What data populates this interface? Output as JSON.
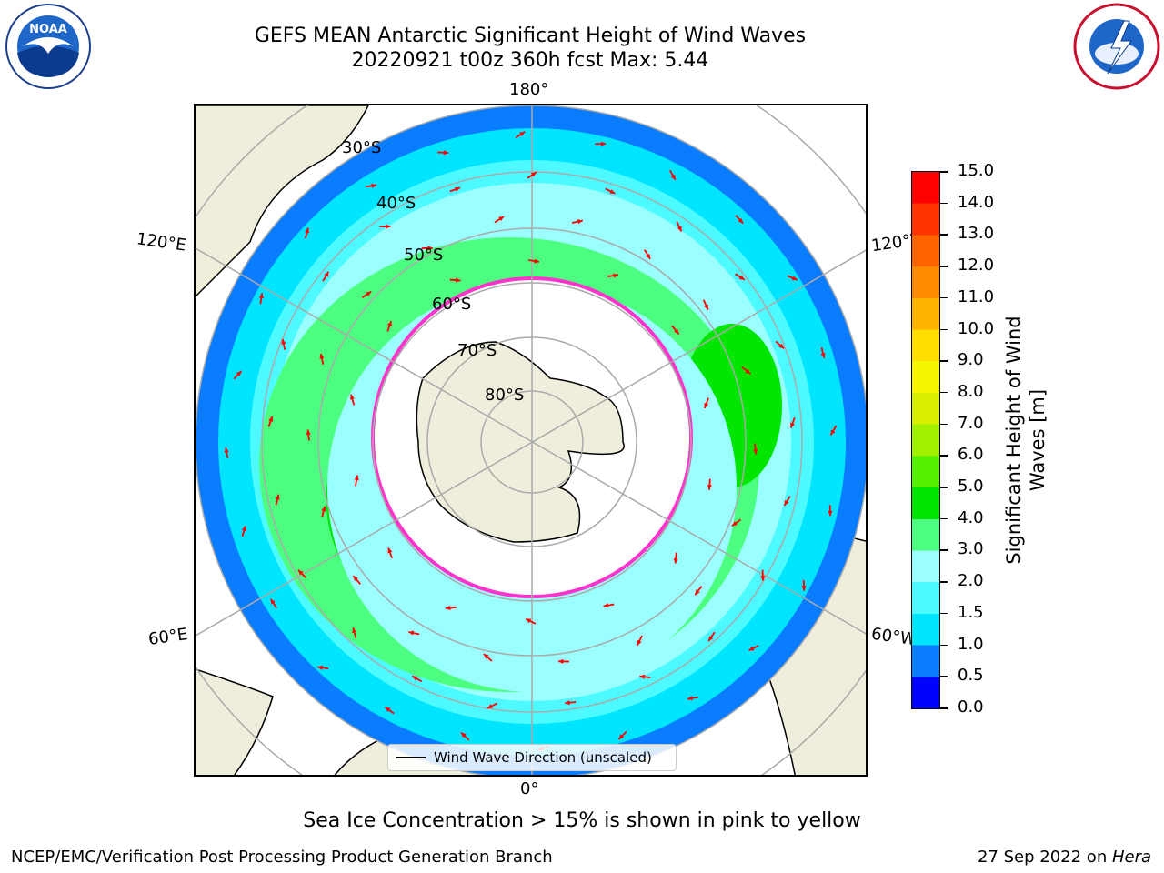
{
  "title": {
    "line1": "GEFS MEAN Antarctic Significant Height of Wind Waves",
    "line2": "20220921 t00z 360h fcst   Max: 5.44"
  },
  "map": {
    "longitude_labels": {
      "top": "180°",
      "upper_left": "120°E",
      "upper_right": "120°W",
      "lower_left": "60°E",
      "lower_right": "60°W",
      "bottom": "0°"
    },
    "latitude_labels": [
      "30°S",
      "40°S",
      "50°S",
      "60°S",
      "70°S",
      "80°S"
    ],
    "legend": "Wind Wave Direction (unscaled)",
    "vector_color": "#ff0000"
  },
  "colorbar": {
    "label": "Significant Height of Wind Waves [m]",
    "ticks": [
      "0.0",
      "0.5",
      "1.0",
      "1.5",
      "2.0",
      "3.0",
      "4.0",
      "5.0",
      "6.0",
      "7.0",
      "8.0",
      "9.0",
      "10.0",
      "11.0",
      "12.0",
      "13.0",
      "14.0",
      "15.0"
    ],
    "colors": [
      "#0000ff",
      "#0a7cff",
      "#00e5ff",
      "#4dfaff",
      "#9bffff",
      "#4dff80",
      "#00e600",
      "#55f000",
      "#a0f000",
      "#d8f000",
      "#f5f500",
      "#ffde00",
      "#ffb400",
      "#ff8c00",
      "#ff6400",
      "#ff3200",
      "#ff0000"
    ]
  },
  "note": "Sea Ice Concentration > 15% is shown in pink to yellow",
  "footer": {
    "left": "NCEP/EMC/Verification Post Processing Product Generation Branch",
    "right_date": "27 Sep 2022 on ",
    "right_host": "Hera"
  },
  "logos": {
    "left": "NOAA",
    "right": "NATIONAL WEATHER SERVICE"
  }
}
